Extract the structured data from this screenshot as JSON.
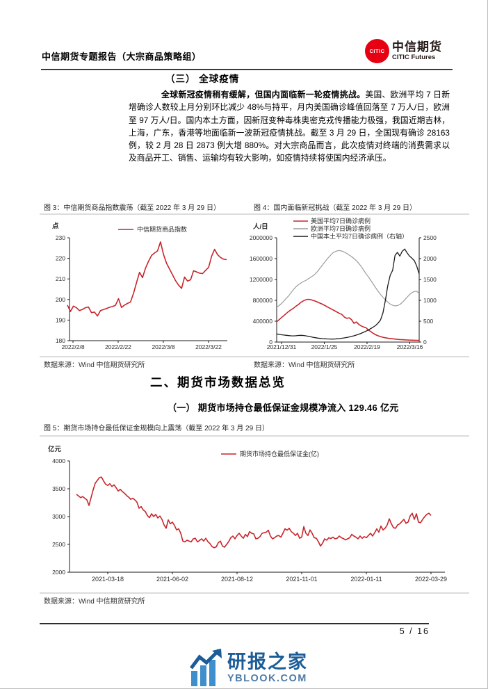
{
  "header": {
    "report_title": "中信期货专题报告（大宗商品策略组）",
    "logo_text": "CITIC",
    "brand_cn": "中信期货",
    "brand_en": "CITIC Futures"
  },
  "section3": {
    "heading": "（三） 全球疫情",
    "lead_bold": "全球新冠疫情稍有缓解，但国内面临新一轮疫情挑战。",
    "body": "美国、欧洲平均 7 日新增确诊人数较上月分别环比减少 48%与持平，月内美国确诊峰值回落至 7 万人/日，欧洲至 97 万人/日。国内本土方面，因新冠变种毒株奥密克戎传播能力极强，我国近期吉林，上海，广东，香港等地面临新一波新冠疫情挑战。截至 3 月 29 日，全国现有确诊 28163 例，较 2 月 28 日 2873 例大增 880%。对大宗商品而言，此次疫情对终端的消费需求以及商品开工、销售、运输均有较大影响，如疫情持续将使国内经济承压。"
  },
  "figure3": {
    "caption": "图 3：中信期货商品指数震荡（截至 2022 年 3 月 29 日）",
    "source": "数据来源：Wind 中信期货研究所"
  },
  "figure4": {
    "caption": "图 4：国内面临新冠挑战（截至 2022 年 3 月 29 日）",
    "source": "数据来源：Wind 中信期货研究所"
  },
  "section2": {
    "heading": "二、期货市场数据总览",
    "sub_heading": "（一） 期货市场持仓最低保证金规模净流入 129.46 亿元"
  },
  "figure5": {
    "caption": "图 5：期货市场持仓最低保证金规模向上震荡（截至 2022 年 3 月 29 日）",
    "source": "数据来源：Wind 中信期货研究所"
  },
  "footer": {
    "page_number": "5 / 16"
  },
  "watermark": {
    "name_cn": "研报之家",
    "site": "YBLOOK.COM"
  },
  "colors": {
    "accent_red": "#C7252B",
    "gray_line": "#9C9C9C",
    "black_line": "#1A1A1A",
    "brand_red": "#E60012",
    "rule_dark": "#3D3A39",
    "rule_light": "#DCDCDC",
    "watermark_blue": "#1C5D97",
    "watermark_light_blue": "#3E8FCC"
  },
  "chart_data": [
    {
      "id": "fig3",
      "type": "line",
      "ylabel": "点",
      "grid": false,
      "legend_position": "top-center",
      "x_ticks": [
        "2022/2/8",
        "2022/2/22",
        "2022/3/8",
        "2022/3/22"
      ],
      "ylim": [
        180,
        230
      ],
      "yticks": [
        180,
        190,
        200,
        210,
        220,
        230
      ],
      "series": [
        {
          "name": "中信期货商品指数",
          "color": "#C7252B",
          "axis": "left",
          "values": [
            197.3,
            194.2,
            196.8,
            196.0,
            194.6,
            195.2,
            196.0,
            196.4,
            193.6,
            193.9,
            192.0,
            194.6,
            195.1,
            195.6,
            196.2,
            196.6,
            197.2,
            200.4,
            196.1,
            197.3,
            198.1,
            198.8,
            203.0,
            208.2,
            213.2,
            210.6,
            215.2,
            218.6,
            221.4,
            222.6,
            223.6,
            228.0,
            221.8,
            217.6,
            214.8,
            212.0,
            209.2,
            207.0,
            205.4,
            210.9,
            209.0,
            209.6,
            214.0,
            213.4,
            212.8,
            212.6,
            214.2,
            215.6,
            221.0,
            224.4,
            221.8,
            220.4,
            219.6,
            219.4
          ]
        }
      ]
    },
    {
      "id": "fig4",
      "type": "line",
      "ylabel": "人/日",
      "grid": false,
      "legend_position": "top-left",
      "x_ticks": [
        "2021/12/31",
        "2022/1/25",
        "2022/2/19",
        "2022/3/16"
      ],
      "ylim": [
        0,
        2000000
      ],
      "yticks": [
        0,
        400000,
        800000,
        1200000,
        1600000,
        2000000
      ],
      "ylim_right": [
        0,
        2500
      ],
      "yticks_right": [
        0,
        500,
        1000,
        1500,
        2000,
        2500
      ],
      "series": [
        {
          "name": "美国平均7日确诊病例",
          "color": "#C7252B",
          "axis": "left",
          "values": [
            390000,
            430000,
            470000,
            510000,
            550000,
            590000,
            620000,
            650000,
            690000,
            720000,
            760000,
            790000,
            810000,
            820000,
            815000,
            800000,
            785000,
            765000,
            745000,
            725000,
            700000,
            675000,
            650000,
            625000,
            600000,
            575000,
            550000,
            530000,
            480000,
            455000,
            465000,
            430000,
            360000,
            385000,
            340000,
            310000,
            290000,
            275000,
            230000,
            200000,
            165000,
            140000,
            120000,
            105000,
            92000,
            82000,
            75000,
            68000,
            62000,
            57000,
            52000,
            48000,
            45000,
            42000,
            40000,
            38000,
            36000,
            34000,
            33000,
            32000
          ]
        },
        {
          "name": "欧洲平均7日确诊病例",
          "color": "#9C9C9C",
          "axis": "left",
          "values": [
            670000,
            700000,
            740000,
            790000,
            840000,
            890000,
            950000,
            1010000,
            1060000,
            1100000,
            1130000,
            1160000,
            1180000,
            1210000,
            1240000,
            1270000,
            1310000,
            1360000,
            1420000,
            1480000,
            1540000,
            1600000,
            1650000,
            1700000,
            1730000,
            1750000,
            1755000,
            1745000,
            1725000,
            1700000,
            1670000,
            1640000,
            1600000,
            1560000,
            1510000,
            1450000,
            1380000,
            1310000,
            1250000,
            1180000,
            1110000,
            1040000,
            975000,
            915000,
            860000,
            810000,
            765000,
            730000,
            705000,
            695000,
            700000,
            720000,
            760000,
            810000,
            860000,
            910000,
            950000,
            970000,
            975000,
            930000
          ]
        },
        {
          "name": "中国本土平均7日确诊病例（右轴）",
          "color": "#1A1A1A",
          "axis": "right",
          "values": [
            195,
            185,
            175,
            168,
            162,
            155,
            150,
            148,
            152,
            158,
            162,
            158,
            150,
            140,
            128,
            115,
            105,
            95,
            88,
            82,
            78,
            75,
            73,
            72,
            74,
            78,
            84,
            92,
            100,
            110,
            122,
            136,
            150,
            168,
            188,
            210,
            235,
            262,
            292,
            325,
            360,
            400,
            455,
            530,
            700,
            1000,
            1350,
            1600,
            1720,
            2080,
            2150,
            2060,
            2180,
            2230,
            2140,
            2060,
            2010,
            1950,
            1820,
            1630
          ]
        }
      ]
    },
    {
      "id": "fig5",
      "type": "line",
      "ylabel": "亿元",
      "grid": false,
      "legend_position": "top-center",
      "x_ticks": [
        "2021-03-18",
        "2021-06-02",
        "2021-08-12",
        "2021-11-01",
        "2022-01-11",
        "2022-03-29"
      ],
      "ylim": [
        2000,
        4000
      ],
      "yticks": [
        2000,
        2500,
        3000,
        3500,
        4000
      ],
      "series": [
        {
          "name": "期货市场持仓最低保证金(亿)",
          "color": "#C7252B",
          "axis": "left",
          "values": [
            3400,
            3370,
            3340,
            3360,
            3330,
            3300,
            3200,
            3340,
            3480,
            3600,
            3650,
            3700,
            3710,
            3640,
            3580,
            3560,
            3590,
            3540,
            3570,
            3520,
            3460,
            3490,
            3450,
            3420,
            3380,
            3350,
            3310,
            3330,
            3300,
            3260,
            3150,
            3180,
            3120,
            3090,
            3020,
            2980,
            3050,
            3000,
            3040,
            2975,
            3010,
            2950,
            2850,
            2790,
            2940,
            2870,
            2900,
            2840,
            2760,
            2780,
            2700,
            2560,
            2545,
            2575,
            2560,
            2545,
            2600,
            2610,
            2545,
            2570,
            2600,
            2560,
            2610,
            2550,
            2515,
            2460,
            2440,
            2455,
            2530,
            2560,
            2470,
            2450,
            2500,
            2550,
            2620,
            2650,
            2600,
            2660,
            2700,
            2650,
            2610,
            2680,
            2640,
            2730,
            2700,
            2690,
            2600,
            2610,
            2640,
            2700,
            2710,
            2720,
            2755,
            2650,
            2600,
            2620,
            2650,
            2660,
            2630,
            2700,
            2780,
            2755,
            2790,
            2730,
            2700,
            2660,
            2700,
            2610,
            2630,
            2820,
            2700,
            2660,
            2760,
            2700,
            2620,
            2610,
            2550,
            2470,
            2520,
            2600,
            2575,
            2620,
            2605,
            2630,
            2600,
            2610,
            2650,
            2620,
            2605,
            2580,
            2600,
            2620,
            2680,
            2650,
            2630,
            2600,
            2650,
            2610,
            2640,
            2620,
            2660,
            2700,
            2650,
            2710,
            2780,
            2720,
            2830,
            2760,
            2790,
            2850,
            2960,
            2870,
            2800,
            2790,
            2850,
            2870,
            2910,
            2950,
            2880,
            2900,
            3010,
            3060,
            2950,
            3050,
            2900,
            2890,
            2950,
            3000,
            3040,
            3060,
            3020
          ]
        }
      ]
    }
  ]
}
